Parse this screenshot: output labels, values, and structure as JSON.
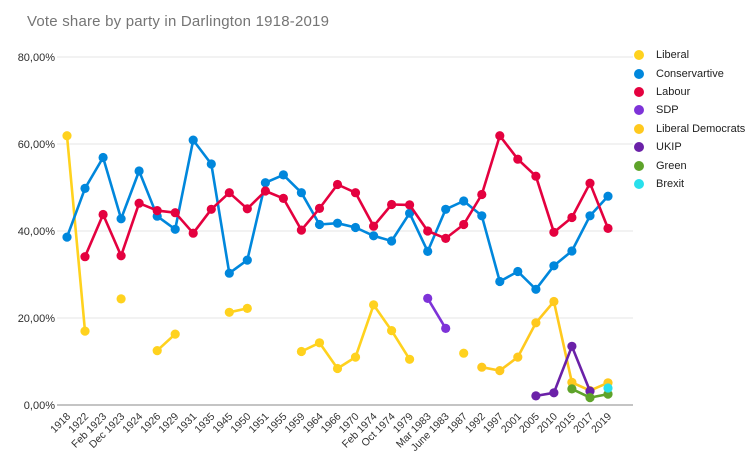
{
  "chart_data": {
    "type": "line",
    "title": "Vote share by party in Darlington 1918-2019",
    "title_color": "#757575",
    "legend_position": "right",
    "grid": true,
    "ylim": [
      0,
      80
    ],
    "ytick_values": [
      0,
      20,
      40,
      60,
      80
    ],
    "ytick_labels": [
      "0,00%",
      "20,00%",
      "40,00%",
      "60,00%",
      "80,00%"
    ],
    "axis_label_color": "#3d3d3d",
    "gridline_color": "#e6e6e6",
    "baseline_color": "#8a8a8a",
    "categories": [
      "1918",
      "1922",
      "Feb 1923",
      "Dec 1923",
      "1924",
      "1926",
      "1929",
      "1931",
      "1935",
      "1945",
      "1950",
      "1951",
      "1955",
      "1959",
      "1964",
      "1966",
      "1970",
      "Feb 1974",
      "Oct 1974",
      "1979",
      "Mar 1983",
      "June 1983",
      "1987",
      "1992",
      "1997",
      "2001",
      "2005",
      "2010",
      "2015",
      "2017",
      "2019"
    ],
    "series": [
      {
        "name": "Liberal",
        "color": "#FFD21E",
        "values": [
          61.9,
          17.0,
          null,
          24.4,
          null,
          12.5,
          16.3,
          null,
          null,
          21.3,
          22.2,
          null,
          null,
          12.3,
          14.3,
          8.4,
          11.0,
          23.0,
          17.1,
          10.5,
          null,
          null,
          11.9,
          null,
          null,
          null,
          null,
          null,
          null,
          null,
          null
        ]
      },
      {
        "name": "Conservartive",
        "color": "#0087DC",
        "values": [
          38.6,
          49.8,
          56.9,
          42.8,
          53.8,
          43.4,
          40.4,
          60.9,
          55.4,
          30.3,
          33.3,
          51.1,
          52.9,
          48.8,
          41.5,
          41.8,
          40.8,
          38.9,
          37.7,
          44.1,
          35.3,
          45.0,
          46.9,
          43.5,
          28.4,
          30.7,
          26.6,
          32.0,
          35.4,
          43.5,
          48.0
        ]
      },
      {
        "name": "Labour",
        "color": "#E4013F",
        "values": [
          null,
          34.1,
          43.8,
          34.3,
          46.4,
          44.7,
          44.2,
          39.5,
          45.0,
          48.8,
          45.1,
          49.2,
          47.5,
          40.2,
          45.2,
          50.7,
          48.8,
          41.1,
          46.1,
          46.0,
          40.0,
          38.3,
          41.5,
          48.4,
          61.9,
          56.5,
          52.6,
          39.7,
          43.1,
          51.0,
          40.6
        ]
      },
      {
        "name": "SDP",
        "color": "#7E33D8",
        "values": [
          null,
          null,
          null,
          null,
          null,
          null,
          null,
          null,
          null,
          null,
          null,
          null,
          null,
          null,
          null,
          null,
          null,
          null,
          null,
          null,
          24.5,
          17.6,
          null,
          null,
          null,
          null,
          null,
          null,
          null,
          null,
          null
        ]
      },
      {
        "name": "Liberal Democrats",
        "color": "#FFC91E",
        "values": [
          null,
          null,
          null,
          null,
          null,
          null,
          null,
          null,
          null,
          null,
          null,
          null,
          null,
          null,
          null,
          null,
          null,
          null,
          null,
          null,
          null,
          null,
          null,
          8.7,
          7.9,
          11.0,
          18.9,
          23.8,
          5.2,
          3.3,
          5.1
        ]
      },
      {
        "name": "UKIP",
        "color": "#6B21A8",
        "values": [
          null,
          null,
          null,
          null,
          null,
          null,
          null,
          null,
          null,
          null,
          null,
          null,
          null,
          null,
          null,
          null,
          null,
          null,
          null,
          null,
          null,
          null,
          null,
          null,
          null,
          null,
          2.1,
          2.8,
          13.5,
          3.2,
          null
        ]
      },
      {
        "name": "Green",
        "color": "#5EA32A",
        "values": [
          null,
          null,
          null,
          null,
          null,
          null,
          null,
          null,
          null,
          null,
          null,
          null,
          null,
          null,
          null,
          null,
          null,
          null,
          null,
          null,
          null,
          null,
          null,
          null,
          null,
          null,
          null,
          null,
          3.7,
          1.7,
          2.5
        ]
      },
      {
        "name": "Brexit",
        "color": "#28E0EC",
        "values": [
          null,
          null,
          null,
          null,
          null,
          null,
          null,
          null,
          null,
          null,
          null,
          null,
          null,
          null,
          null,
          null,
          null,
          null,
          null,
          null,
          null,
          null,
          null,
          null,
          null,
          null,
          null,
          null,
          null,
          null,
          3.9
        ]
      }
    ]
  }
}
